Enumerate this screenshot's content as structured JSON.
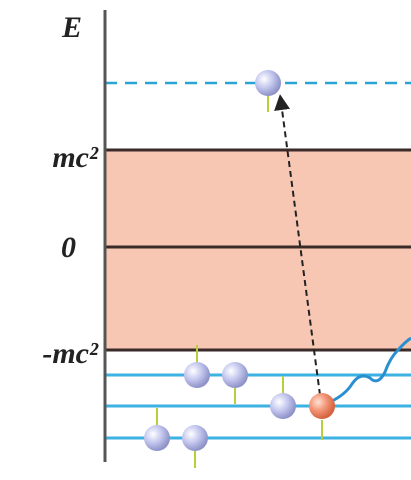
{
  "axis": {
    "label": "E"
  },
  "levels": [
    {
      "label": "mc²"
    },
    {
      "label": "0"
    },
    {
      "label": "-mc²"
    }
  ]
}
